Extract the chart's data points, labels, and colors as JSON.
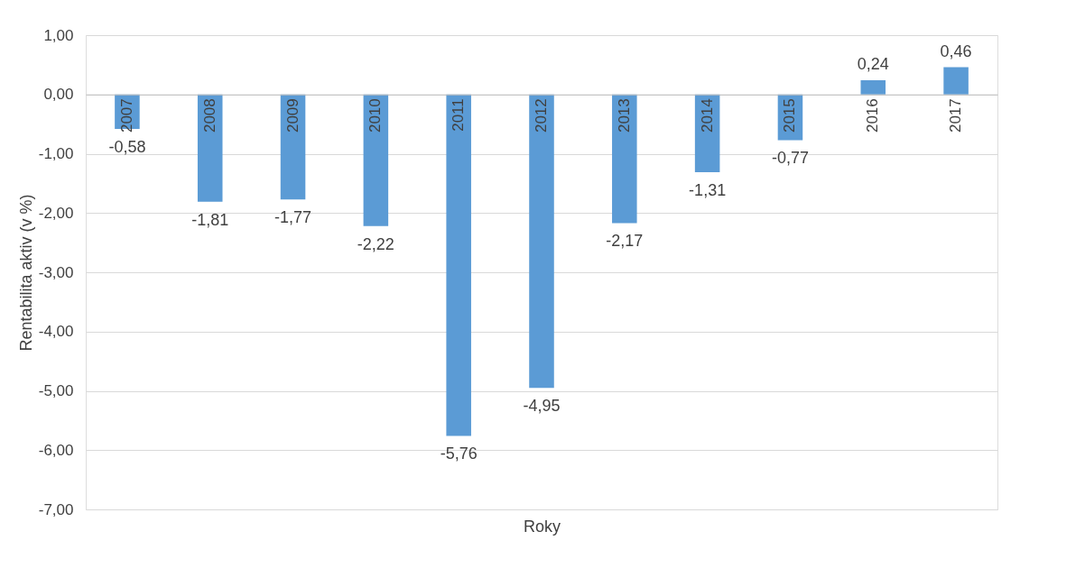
{
  "chart_data": {
    "type": "bar",
    "xlabel": "Roky",
    "ylabel": "Rentabilita aktiv (v %)",
    "categories": [
      "2007",
      "2008",
      "2009",
      "2010",
      "2011",
      "2012",
      "2013",
      "2014",
      "2015",
      "2016",
      "2017"
    ],
    "values": [
      -0.58,
      -1.81,
      -1.77,
      -2.22,
      -5.76,
      -4.95,
      -2.17,
      -1.31,
      -0.77,
      0.24,
      0.46
    ],
    "value_labels": [
      "-0,58",
      "-1,81",
      "-1,77",
      "-2,22",
      "-5,76",
      "-4,95",
      "-2,17",
      "-1,31",
      "-0,77",
      "0,24",
      "0,46"
    ],
    "color": "#5b9bd5",
    "ylim": [
      -7,
      1
    ],
    "yticks": [
      {
        "value": -7,
        "label": "-7,00"
      },
      {
        "value": -6,
        "label": "-6,00"
      },
      {
        "value": -5,
        "label": "-5,00"
      },
      {
        "value": -4,
        "label": "-4,00"
      },
      {
        "value": -3,
        "label": "-3,00"
      },
      {
        "value": -2,
        "label": "-2,00"
      },
      {
        "value": -1,
        "label": "-1,00"
      },
      {
        "value": 0,
        "label": "0,00"
      },
      {
        "value": 1,
        "label": "1,00"
      }
    ],
    "grid": "y"
  }
}
